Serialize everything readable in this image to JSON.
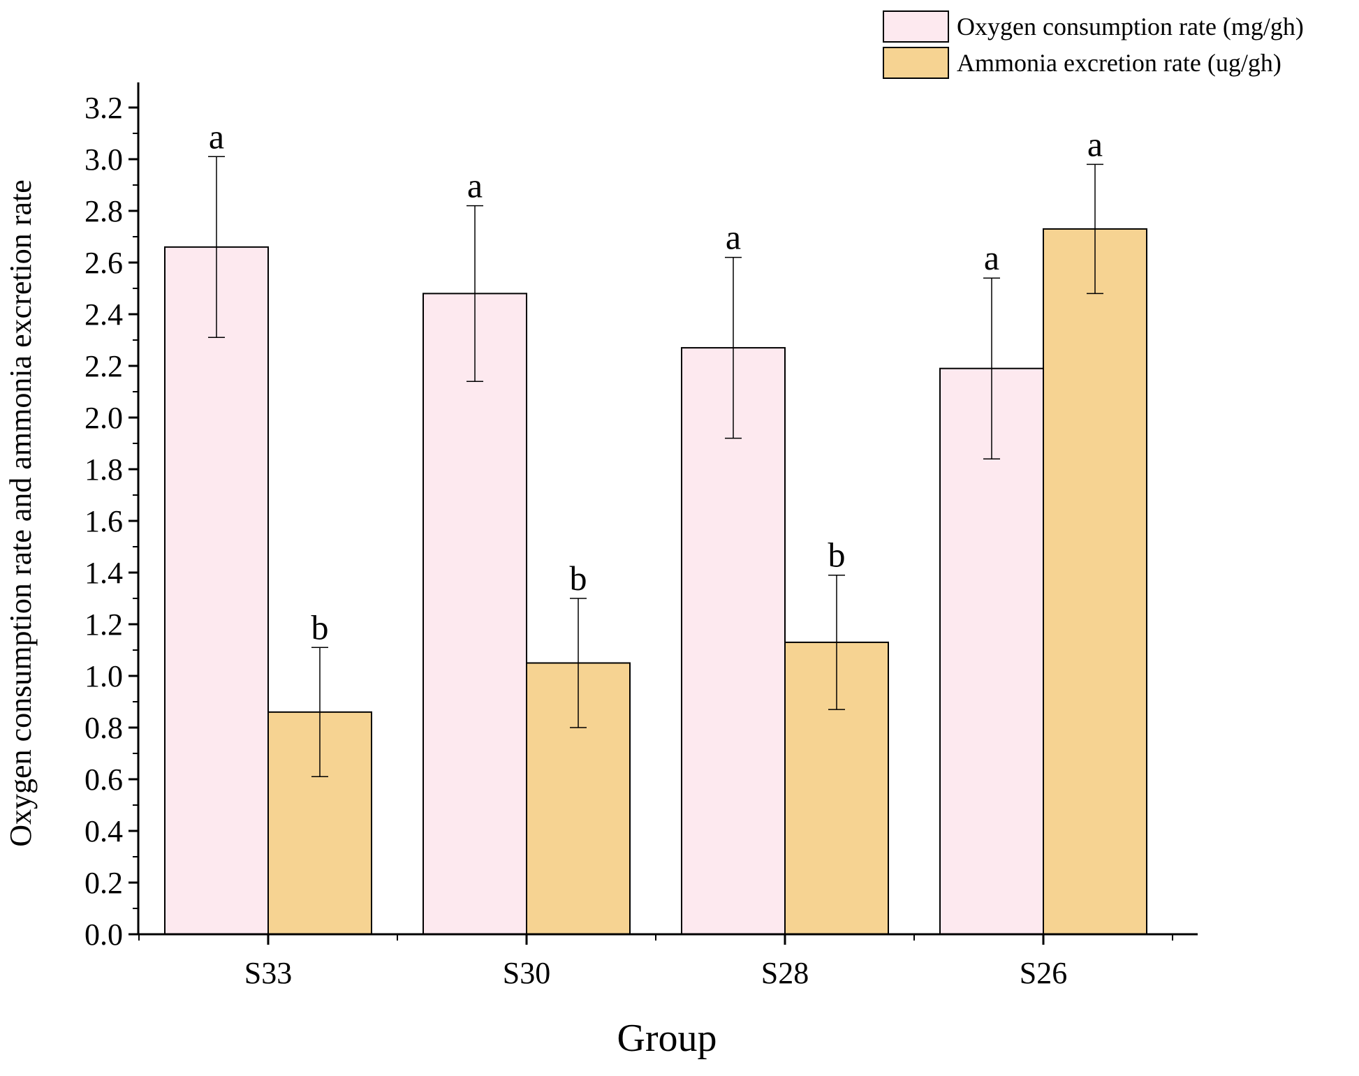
{
  "chart_data": {
    "type": "bar",
    "title": "",
    "xlabel": "Group",
    "ylabel": "Oxygen consumption rate and ammonia excretion rate",
    "categories": [
      "S33",
      "S30",
      "S28",
      "S26"
    ],
    "ylim": [
      0,
      3.3
    ],
    "yticks": [
      "0.0",
      "0.2",
      "0.4",
      "0.6",
      "0.8",
      "1.0",
      "1.2",
      "1.4",
      "1.6",
      "1.8",
      "2.0",
      "2.2",
      "2.4",
      "2.6",
      "2.8",
      "3.0",
      "3.2"
    ],
    "grid": false,
    "legend_position": "top-right",
    "series": [
      {
        "name": "Oxygen consumption rate (mg/gh)",
        "color": "#fde9ef",
        "values": [
          2.66,
          2.48,
          2.27,
          2.19
        ],
        "errors": [
          0.35,
          0.34,
          0.35,
          0.35
        ],
        "letters": [
          "a",
          "a",
          "a",
          "a"
        ]
      },
      {
        "name": "Ammonia excretion rate (ug/gh)",
        "color": "#f6d392",
        "values": [
          0.86,
          1.05,
          1.13,
          2.73
        ],
        "errors": [
          0.25,
          0.25,
          0.26,
          0.25
        ],
        "letters": [
          "b",
          "b",
          "b",
          "a"
        ]
      }
    ]
  }
}
